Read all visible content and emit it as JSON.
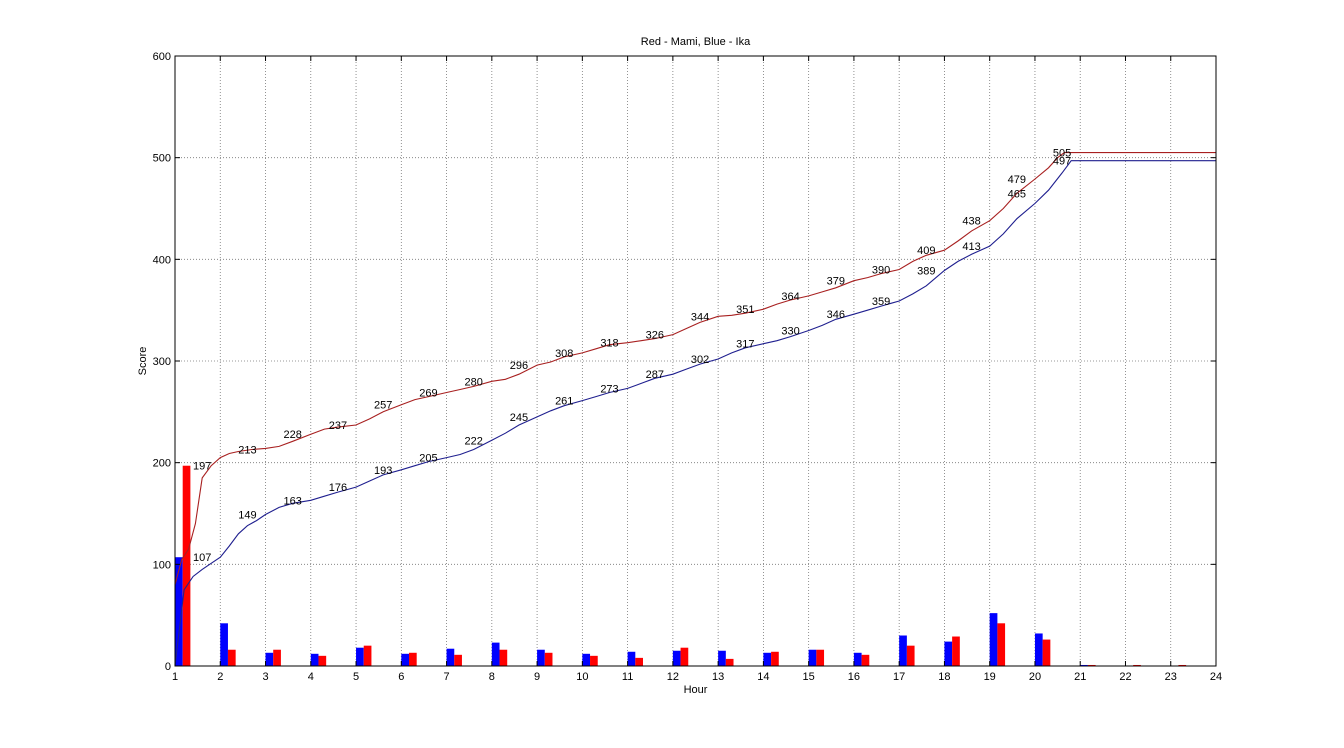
{
  "chart_data": {
    "type": "line",
    "title": "Red - Mami, Blue - Ika",
    "xlabel": "Hour",
    "ylabel": "Score",
    "xlim": [
      1,
      24
    ],
    "ylim": [
      0,
      600
    ],
    "xticks": [
      "1",
      "2",
      "3",
      "4",
      "5",
      "6",
      "7",
      "8",
      "9",
      "10",
      "11",
      "12",
      "13",
      "14",
      "15",
      "16",
      "17",
      "18",
      "19",
      "20",
      "21",
      "22",
      "23",
      "24"
    ],
    "yticks": [
      "0",
      "100",
      "200",
      "300",
      "400",
      "500",
      "600"
    ],
    "grid": true,
    "colors": {
      "blue": "#0000ff",
      "red": "#ff0000",
      "blue_line": "#1f1f8f",
      "red_line": "#a82020"
    },
    "series": [
      {
        "name": "Red - Mami",
        "color": "red",
        "line": {
          "x": [
            1,
            1.15,
            1.3,
            1.45,
            1.6,
            1.8,
            2.0,
            2.2,
            2.4,
            2.7,
            3.0,
            3.3,
            3.6,
            4.0,
            4.3,
            4.6,
            5.0,
            5.3,
            5.6,
            6.0,
            6.3,
            6.6,
            7.0,
            7.3,
            7.6,
            8.0,
            8.3,
            8.6,
            9.0,
            9.3,
            9.6,
            10.0,
            10.3,
            10.6,
            11.0,
            11.3,
            11.6,
            12.0,
            12.3,
            12.6,
            13.0,
            13.3,
            13.6,
            14.0,
            14.3,
            14.6,
            15.0,
            15.3,
            15.6,
            16.0,
            16.3,
            16.6,
            17.0,
            17.3,
            17.6,
            18.0,
            18.3,
            18.6,
            19.0,
            19.3,
            19.6,
            20.0,
            20.3,
            20.5,
            20.65,
            21.0,
            22.0,
            23.0,
            24.0
          ],
          "y": [
            80,
            105,
            115,
            140,
            185,
            197,
            205,
            209,
            211,
            213,
            214,
            216,
            221,
            228,
            233,
            235,
            237,
            243,
            250,
            257,
            262,
            265,
            269,
            272,
            275,
            280,
            282,
            287,
            296,
            299,
            304,
            308,
            312,
            316,
            318,
            320,
            322,
            326,
            332,
            338,
            344,
            345,
            347,
            351,
            356,
            360,
            364,
            368,
            372,
            379,
            382,
            386,
            390,
            398,
            404,
            409,
            418,
            428,
            438,
            450,
            465,
            479,
            490,
            500,
            505,
            505,
            505,
            505,
            505
          ]
        },
        "bars": [
          197,
          16,
          16,
          10,
          20,
          13,
          11,
          16,
          13,
          10,
          8,
          18,
          7,
          14,
          16,
          11,
          20,
          29,
          42,
          26,
          1,
          1,
          1,
          0
        ]
      },
      {
        "name": "Blue - Ika",
        "color": "blue",
        "line": {
          "x": [
            1,
            1.2,
            1.4,
            1.6,
            1.8,
            2.0,
            2.2,
            2.4,
            2.6,
            2.8,
            3.0,
            3.3,
            3.6,
            4.0,
            4.3,
            4.6,
            5.0,
            5.3,
            5.6,
            6.0,
            6.3,
            6.6,
            7.0,
            7.3,
            7.6,
            8.0,
            8.3,
            8.6,
            9.0,
            9.3,
            9.6,
            10.0,
            10.3,
            10.6,
            11.0,
            11.3,
            11.6,
            12.0,
            12.3,
            12.6,
            13.0,
            13.3,
            13.6,
            14.0,
            14.3,
            14.6,
            15.0,
            15.3,
            15.6,
            16.0,
            16.3,
            16.6,
            17.0,
            17.3,
            17.6,
            18.0,
            18.3,
            18.6,
            19.0,
            19.3,
            19.6,
            20.0,
            20.3,
            20.6,
            20.8,
            21.0,
            22.0,
            23.0,
            24.0
          ],
          "y": [
            0,
            75,
            88,
            95,
            101,
            107,
            118,
            130,
            138,
            143,
            149,
            156,
            160,
            163,
            167,
            171,
            176,
            182,
            188,
            193,
            197,
            201,
            205,
            208,
            213,
            222,
            229,
            237,
            245,
            251,
            256,
            261,
            265,
            269,
            273,
            278,
            283,
            287,
            292,
            297,
            302,
            308,
            313,
            317,
            320,
            324,
            330,
            335,
            341,
            346,
            350,
            354,
            359,
            366,
            374,
            389,
            398,
            405,
            413,
            425,
            440,
            455,
            468,
            485,
            497,
            497,
            497,
            497,
            497
          ]
        },
        "bars": [
          107,
          42,
          13,
          12,
          18,
          12,
          17,
          23,
          16,
          12,
          14,
          15,
          15,
          13,
          16,
          13,
          30,
          24,
          52,
          32,
          1,
          0,
          0,
          0
        ]
      }
    ],
    "data_labels": {
      "red": [
        {
          "x": 1.6,
          "y": 197,
          "text": "197"
        },
        {
          "x": 2.6,
          "y": 213,
          "text": "213"
        },
        {
          "x": 3.6,
          "y": 228,
          "text": "228"
        },
        {
          "x": 4.6,
          "y": 237,
          "text": "237"
        },
        {
          "x": 5.6,
          "y": 257,
          "text": "257"
        },
        {
          "x": 6.6,
          "y": 269,
          "text": "269"
        },
        {
          "x": 7.6,
          "y": 280,
          "text": "280"
        },
        {
          "x": 8.6,
          "y": 296,
          "text": "296"
        },
        {
          "x": 9.6,
          "y": 308,
          "text": "308"
        },
        {
          "x": 10.6,
          "y": 318,
          "text": "318"
        },
        {
          "x": 11.6,
          "y": 326,
          "text": "326"
        },
        {
          "x": 12.6,
          "y": 344,
          "text": "344"
        },
        {
          "x": 13.6,
          "y": 351,
          "text": "351"
        },
        {
          "x": 14.6,
          "y": 364,
          "text": "364"
        },
        {
          "x": 15.6,
          "y": 379,
          "text": "379"
        },
        {
          "x": 16.6,
          "y": 390,
          "text": "390"
        },
        {
          "x": 17.6,
          "y": 409,
          "text": "409"
        },
        {
          "x": 18.6,
          "y": 438,
          "text": "438"
        },
        {
          "x": 19.6,
          "y": 479,
          "text": "479"
        },
        {
          "x": 20.6,
          "y": 505,
          "text": "505"
        }
      ],
      "blue": [
        {
          "x": 1.6,
          "y": 107,
          "text": "107"
        },
        {
          "x": 2.6,
          "y": 149,
          "text": "149"
        },
        {
          "x": 3.6,
          "y": 163,
          "text": "163"
        },
        {
          "x": 4.6,
          "y": 176,
          "text": "176"
        },
        {
          "x": 5.6,
          "y": 193,
          "text": "193"
        },
        {
          "x": 6.6,
          "y": 205,
          "text": "205"
        },
        {
          "x": 7.6,
          "y": 222,
          "text": "222"
        },
        {
          "x": 8.6,
          "y": 245,
          "text": "245"
        },
        {
          "x": 9.6,
          "y": 261,
          "text": "261"
        },
        {
          "x": 10.6,
          "y": 273,
          "text": "273"
        },
        {
          "x": 11.6,
          "y": 287,
          "text": "287"
        },
        {
          "x": 12.6,
          "y": 302,
          "text": "302"
        },
        {
          "x": 13.6,
          "y": 317,
          "text": "317"
        },
        {
          "x": 14.6,
          "y": 330,
          "text": "330"
        },
        {
          "x": 15.6,
          "y": 346,
          "text": "346"
        },
        {
          "x": 16.6,
          "y": 359,
          "text": "359"
        },
        {
          "x": 17.6,
          "y": 389,
          "text": "389"
        },
        {
          "x": 18.6,
          "y": 413,
          "text": "413"
        },
        {
          "x": 19.6,
          "y": 465,
          "text": "465"
        },
        {
          "x": 20.6,
          "y": 497,
          "text": "497"
        }
      ]
    }
  }
}
